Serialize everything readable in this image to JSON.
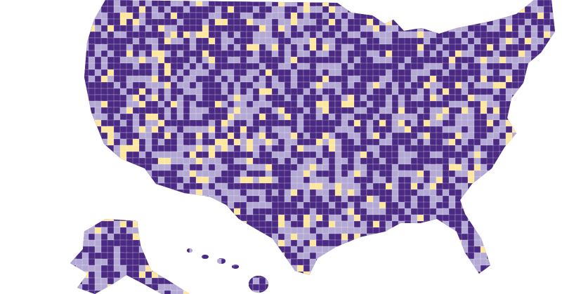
{
  "map": {
    "colors": [
      "#4a2a83",
      "#b4a9d4",
      "#fde69e"
    ]
  }
}
